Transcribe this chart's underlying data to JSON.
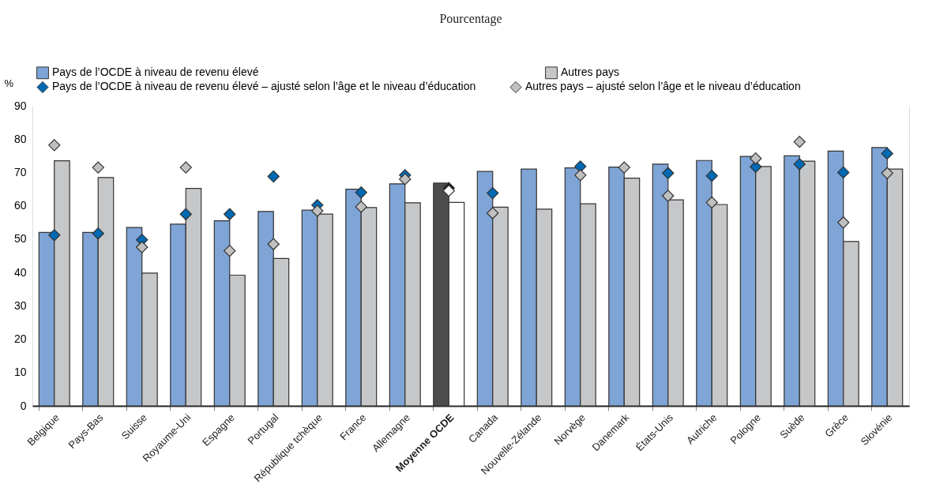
{
  "chart_data": {
    "type": "bar",
    "subtitle": "Pourcentage",
    "ylabel": "%",
    "categories": [
      "Belgique",
      "Pays-Bas",
      "Suisse",
      "Royaume-Uni",
      "Espagne",
      "Portugal",
      "République tchèque",
      "France",
      "Allemagne",
      "Moyenne OCDE",
      "Canada",
      "Nouvelle-Zélande",
      "Norvège",
      "Danemark",
      "États-Unis",
      "Autriche",
      "Pologne",
      "Suède",
      "Grèce",
      "Slovénie"
    ],
    "series": [
      {
        "name": "Pays de l’OCDE à niveau de revenu élevé",
        "color": "#7fa4d6",
        "colors": [
          "#7fa4d6",
          "#7fa4d6",
          "#7fa4d6",
          "#7fa4d6",
          "#7fa4d6",
          "#7fa4d6",
          "#7fa4d6",
          "#7fa4d6",
          "#7fa4d6",
          "#4d4d4d",
          "#7fa4d6",
          "#7fa4d6",
          "#7fa4d6",
          "#7fa4d6",
          "#7fa4d6",
          "#7fa4d6",
          "#7fa4d6",
          "#7fa4d6",
          "#7fa4d6",
          "#7fa4d6"
        ],
        "values": [
          52,
          52,
          53.5,
          54.5,
          55.5,
          58.3,
          58.7,
          65,
          66.6,
          66.8,
          70.3,
          71,
          71.4,
          71.6,
          72.5,
          73.6,
          74.8,
          75,
          76.4,
          77.5
        ]
      },
      {
        "name": "Autres pays",
        "color": "#c6c7c9",
        "colors": [
          "#c6c7c9",
          "#c6c7c9",
          "#c6c7c9",
          "#c6c7c9",
          "#c6c7c9",
          "#c6c7c9",
          "#c6c7c9",
          "#c6c7c9",
          "#c6c7c9",
          "#ffffff",
          "#c6c7c9",
          "#c6c7c9",
          "#c6c7c9",
          "#c6c7c9",
          "#c6c7c9",
          "#c6c7c9",
          "#c6c7c9",
          "#c6c7c9",
          "#c6c7c9",
          "#c6c7c9"
        ],
        "values": [
          73.5,
          68.5,
          39.8,
          65.2,
          39.2,
          44.2,
          57.5,
          59.5,
          60.9,
          61,
          59.6,
          59,
          60.6,
          68.3,
          61.8,
          60.4,
          71.8,
          73.4,
          49.3,
          71
        ]
      },
      {
        "name": "Pays de l’OCDE à niveau de revenu élevé – ajusté selon l’âge et le niveau d’éducation",
        "type": "scatter",
        "marker": "diamond",
        "color": "#0069b4",
        "colors": [
          "#0069b4",
          "#0069b4",
          "#0069b4",
          "#0069b4",
          "#0069b4",
          "#0069b4",
          "#0069b4",
          "#0069b4",
          "#0069b4",
          "#1a1a1a",
          "#0069b4",
          "#0069b4",
          "#0069b4",
          "#0069b4",
          "#0069b4",
          "#0069b4",
          "#0069b4",
          "#0069b4",
          "#0069b4",
          "#0069b4"
        ],
        "values": [
          51.2,
          51.7,
          49.8,
          57.5,
          57.5,
          68.8,
          60.2,
          64,
          69.2,
          65.3,
          63.8,
          null,
          71.8,
          null,
          69.8,
          69,
          71.7,
          72.5,
          70,
          75.7
        ]
      },
      {
        "name": "Autres pays – ajusté selon l’âge et le niveau d’éducation",
        "type": "scatter",
        "marker": "diamond",
        "color": "#c0c0c0",
        "colors": [
          "#c0c0c0",
          "#c0c0c0",
          "#c0c0c0",
          "#c0c0c0",
          "#c0c0c0",
          "#c0c0c0",
          "#c0c0c0",
          "#c0c0c0",
          "#c0c0c0",
          "#ffffff",
          "#c0c0c0",
          "#c0c0c0",
          "#c0c0c0",
          "#c0c0c0",
          "#c0c0c0",
          "#c0c0c0",
          "#c0c0c0",
          "#c0c0c0",
          "#c0c0c0",
          "#c0c0c0"
        ],
        "values": [
          78.2,
          71.5,
          47.6,
          71.5,
          46.5,
          48.5,
          58.5,
          59.7,
          68,
          64.5,
          57.8,
          null,
          69.2,
          71.5,
          63,
          61,
          74.2,
          79.2,
          55,
          69.8
        ]
      }
    ],
    "ylim": [
      0,
      90
    ],
    "yticks": [
      0,
      10,
      20,
      30,
      40,
      50,
      60,
      70,
      80,
      90
    ],
    "grid": true,
    "legend": "top"
  }
}
